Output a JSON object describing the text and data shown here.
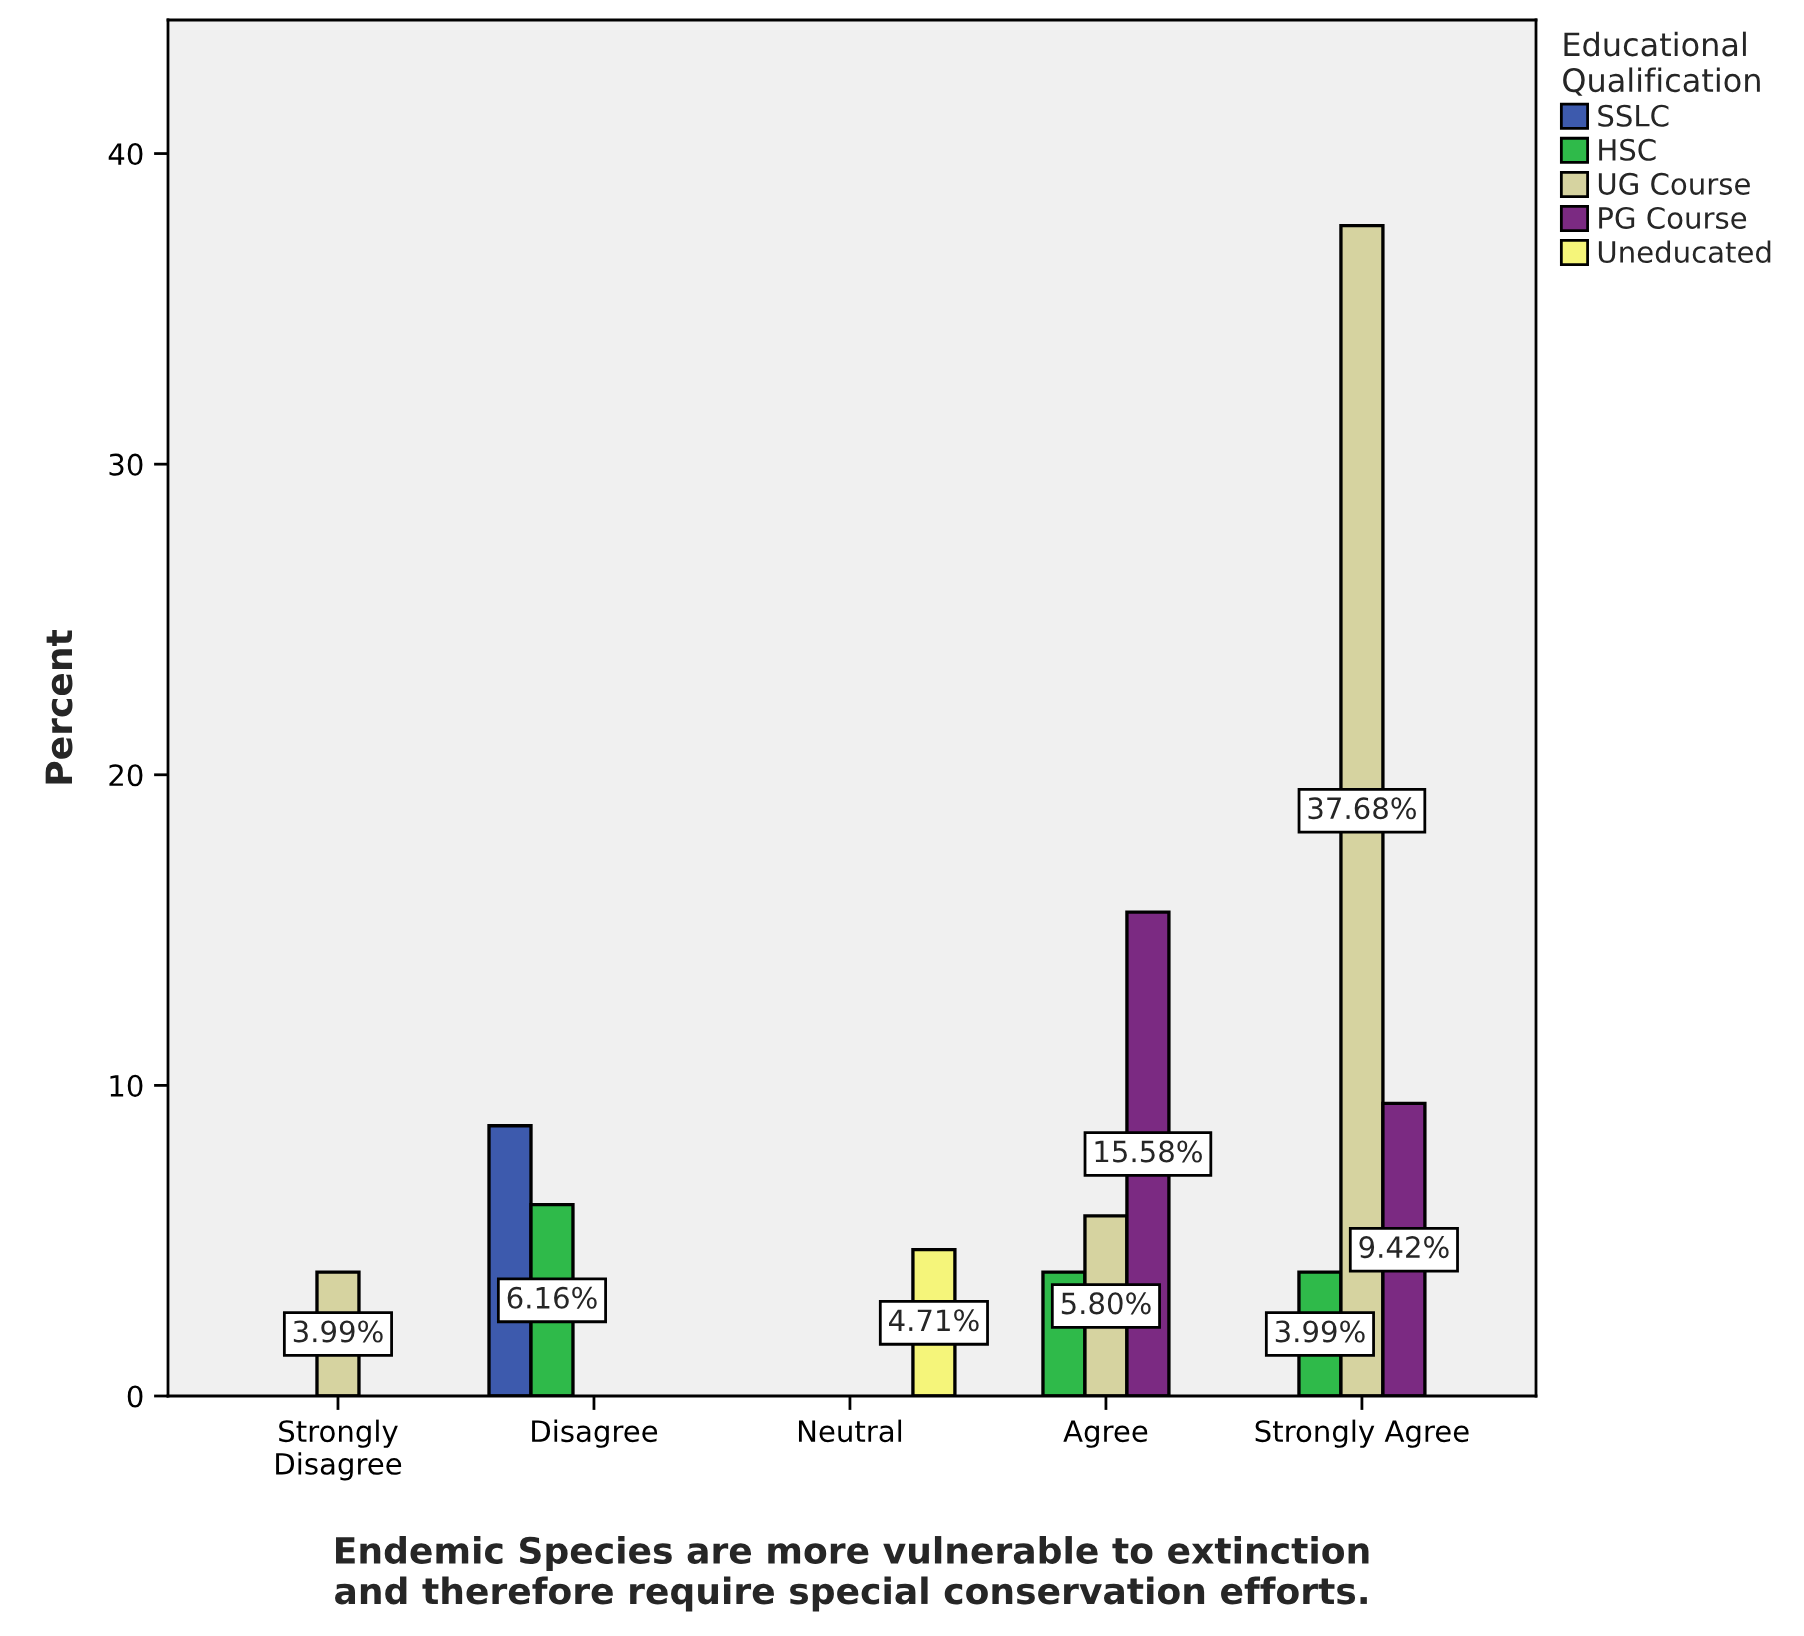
{
  "chart_data": {
    "type": "bar",
    "xlabel": "Endemic Species are more vulnerable to extinction\nand therefore require special conservation efforts.",
    "ylabel": "Percent",
    "legend_title": "Educational\nQualification",
    "categories": [
      "Strongly\nDisagree",
      "Disagree",
      "Neutral",
      "Agree",
      "Strongly Agree"
    ],
    "series": [
      {
        "name": "SSLC",
        "color": "#3d5aad",
        "values": [
          null,
          8.7,
          null,
          null,
          null
        ],
        "value_labels": [
          null,
          null,
          null,
          null,
          null
        ]
      },
      {
        "name": "HSC",
        "color": "#2fba4a",
        "values": [
          null,
          6.16,
          null,
          3.99,
          3.99
        ],
        "value_labels": [
          null,
          "6.16%",
          null,
          null,
          "3.99%"
        ]
      },
      {
        "name": "UG Course",
        "color": "#d6d3a0",
        "values": [
          3.99,
          null,
          null,
          5.8,
          37.68
        ],
        "value_labels": [
          "3.99%",
          null,
          null,
          "5.80%",
          "37.68%"
        ]
      },
      {
        "name": "PG Course",
        "color": "#7b2a82",
        "values": [
          null,
          null,
          null,
          15.58,
          9.42
        ],
        "value_labels": [
          null,
          null,
          null,
          "15.58%",
          "9.42%"
        ]
      },
      {
        "name": "Uneducated",
        "color": "#f5f57a",
        "values": [
          null,
          null,
          4.71,
          null,
          null
        ],
        "value_labels": [
          null,
          null,
          "4.71%",
          null,
          null
        ]
      }
    ],
    "ylim": [
      0,
      44.3
    ],
    "yticks": [
      0,
      10,
      20,
      30,
      40
    ],
    "grid": false,
    "legend": "right"
  }
}
